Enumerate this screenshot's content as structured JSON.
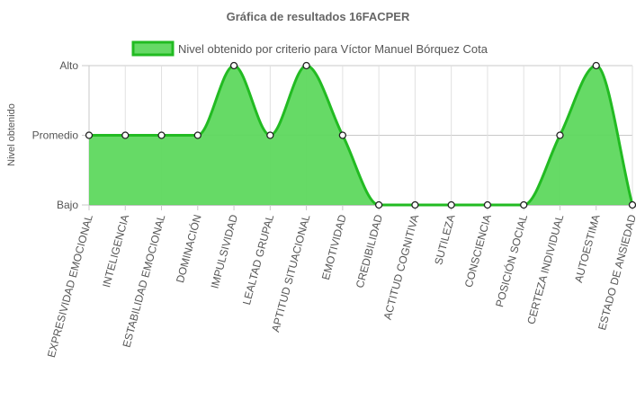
{
  "chart_data": {
    "type": "area",
    "title": "Gráfica de resultados 16FACPER",
    "ylabel": "Nivel obtenido",
    "xlabel": "",
    "y_levels": [
      "Bajo",
      "Promedio",
      "Alto"
    ],
    "ylim": [
      0,
      2
    ],
    "categories": [
      "EXPRESIVIDAD EMOCIONAL",
      "INTELIGENCIA",
      "ESTABILIDAD EMOCIONAL",
      "DOMINACIÓN",
      "IMPULSIVIDAD",
      "LEALTAD GRUPAL",
      "APTITUD SITUACIONAL",
      "EMOTIVIDAD",
      "CREDIBILIDAD",
      "ACTITUD COGNITIVA",
      "SUTILEZA",
      "CONSCIENCIA",
      "POSICIÓN SOCIAL",
      "CERTEZA INDIVIDUAL",
      "AUTOESTIMA",
      "ESTADO DE ANSIEDAD"
    ],
    "series": [
      {
        "name": "Nivel obtenido por criterio para Víctor Manuel Bórquez Cota",
        "values": [
          1,
          1,
          1,
          1,
          2,
          1,
          2,
          1,
          0,
          0,
          0,
          0,
          0,
          1,
          2,
          0
        ]
      }
    ],
    "grid": true,
    "legend_position": "top",
    "colors": {
      "fill": "#5ed85e",
      "stroke": "#22bb22",
      "legend_fill": "#66d966",
      "point_fill": "#ffffff",
      "point_stroke": "#222222",
      "grid": "#e0e0e0",
      "axis": "#888888"
    }
  }
}
